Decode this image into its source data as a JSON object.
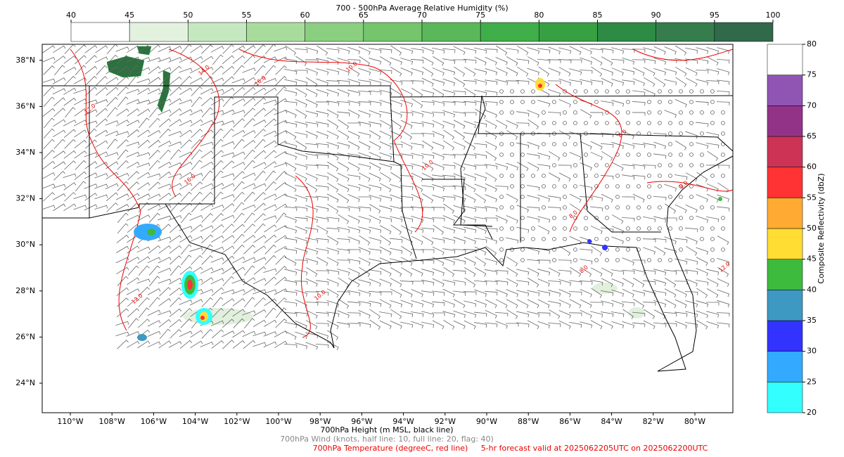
{
  "title": "700 - 500hPa Average Relative Humidity (%)",
  "humidity_colorbar": {
    "ticks": [
      40,
      45,
      50,
      55,
      60,
      65,
      70,
      75,
      80,
      85,
      90,
      95,
      100
    ],
    "colors": [
      "#ffffff",
      "#e3f2df",
      "#c6e8c0",
      "#a8dc9c",
      "#8acf80",
      "#74c56c",
      "#5ab85a",
      "#3fae48",
      "#37a043",
      "#2e8b46",
      "#357d4d",
      "#31694b"
    ]
  },
  "reflectivity_colorbar": {
    "label": "Composite Reflectivity (dbZ)",
    "ticks": [
      20,
      25,
      30,
      35,
      40,
      45,
      50,
      55,
      60,
      65,
      70,
      75,
      80
    ],
    "colors": [
      "#33ffff",
      "#33aaff",
      "#3333ff",
      "#3d99c2",
      "#3dbb3d",
      "#ffdd33",
      "#ffaa33",
      "#ff3333",
      "#cc3355",
      "#933388",
      "#9055b3",
      "#ffffff"
    ]
  },
  "map": {
    "lat_ticks": [
      {
        "value": 24,
        "label": "24°N"
      },
      {
        "value": 26,
        "label": "26°N"
      },
      {
        "value": 28,
        "label": "28°N"
      },
      {
        "value": 30,
        "label": "30°N"
      },
      {
        "value": 32,
        "label": "32°N"
      },
      {
        "value": 34,
        "label": "34°N"
      },
      {
        "value": 36,
        "label": "36°N"
      },
      {
        "value": 38,
        "label": "38°N"
      }
    ],
    "lon_ticks": [
      {
        "value": -110,
        "label": "110°W"
      },
      {
        "value": -108,
        "label": "108°W"
      },
      {
        "value": -106,
        "label": "106°W"
      },
      {
        "value": -104,
        "label": "104°W"
      },
      {
        "value": -102,
        "label": "102°W"
      },
      {
        "value": -100,
        "label": "100°W"
      },
      {
        "value": -98,
        "label": "98°W"
      },
      {
        "value": -96,
        "label": "96°W"
      },
      {
        "value": -94,
        "label": "94°W"
      },
      {
        "value": -92,
        "label": "92°W"
      },
      {
        "value": -90,
        "label": "90°W"
      },
      {
        "value": -88,
        "label": "88°W"
      },
      {
        "value": -86,
        "label": "86°W"
      },
      {
        "value": -84,
        "label": "84°W"
      },
      {
        "value": -82,
        "label": "82°W"
      },
      {
        "value": -80,
        "label": "80°W"
      }
    ],
    "contour_labels": [
      "12.0",
      "14.0",
      "16.0",
      "12.0",
      "16.0",
      "10.0",
      "10.0",
      "8.0",
      "8.0",
      "8.0",
      "8.0",
      "10.0",
      "12.0"
    ]
  },
  "footer": {
    "height": "700hPa Height (m MSL, black line)",
    "wind": "700hPa Wind (knots, half line: 10, full line: 20, flag: 40)",
    "temperature": "700hPa Temperature (degreeC, red line)",
    "forecast": "5-hr forecast valid at 2025062205UTC on 2025062200UTC"
  }
}
